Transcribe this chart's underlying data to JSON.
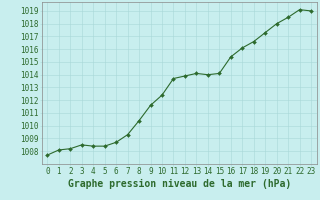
{
  "x": [
    0,
    1,
    2,
    3,
    4,
    5,
    6,
    7,
    8,
    9,
    10,
    11,
    12,
    13,
    14,
    15,
    16,
    17,
    18,
    19,
    20,
    21,
    22,
    23
  ],
  "y": [
    1007.7,
    1008.1,
    1008.2,
    1008.5,
    1008.4,
    1008.4,
    1008.7,
    1009.3,
    1010.4,
    1011.6,
    1012.4,
    1013.7,
    1013.9,
    1014.1,
    1014.0,
    1014.1,
    1015.4,
    1016.1,
    1016.6,
    1017.3,
    1018.0,
    1018.5,
    1019.1,
    1019.0
  ],
  "ylim": [
    1007.0,
    1019.7
  ],
  "yticks": [
    1008,
    1009,
    1010,
    1011,
    1012,
    1013,
    1014,
    1015,
    1016,
    1017,
    1018,
    1019
  ],
  "xticks": [
    0,
    1,
    2,
    3,
    4,
    5,
    6,
    7,
    8,
    9,
    10,
    11,
    12,
    13,
    14,
    15,
    16,
    17,
    18,
    19,
    20,
    21,
    22,
    23
  ],
  "xlabel": "Graphe pression niveau de la mer (hPa)",
  "line_color": "#2d6a2d",
  "marker": "D",
  "marker_size": 2.0,
  "bg_color": "#c8eeee",
  "grid_color": "#a8d8d8",
  "tick_color": "#2d6a2d",
  "label_color": "#2d6a2d",
  "tick_fontsize": 5.5,
  "xlabel_fontsize": 7.0
}
